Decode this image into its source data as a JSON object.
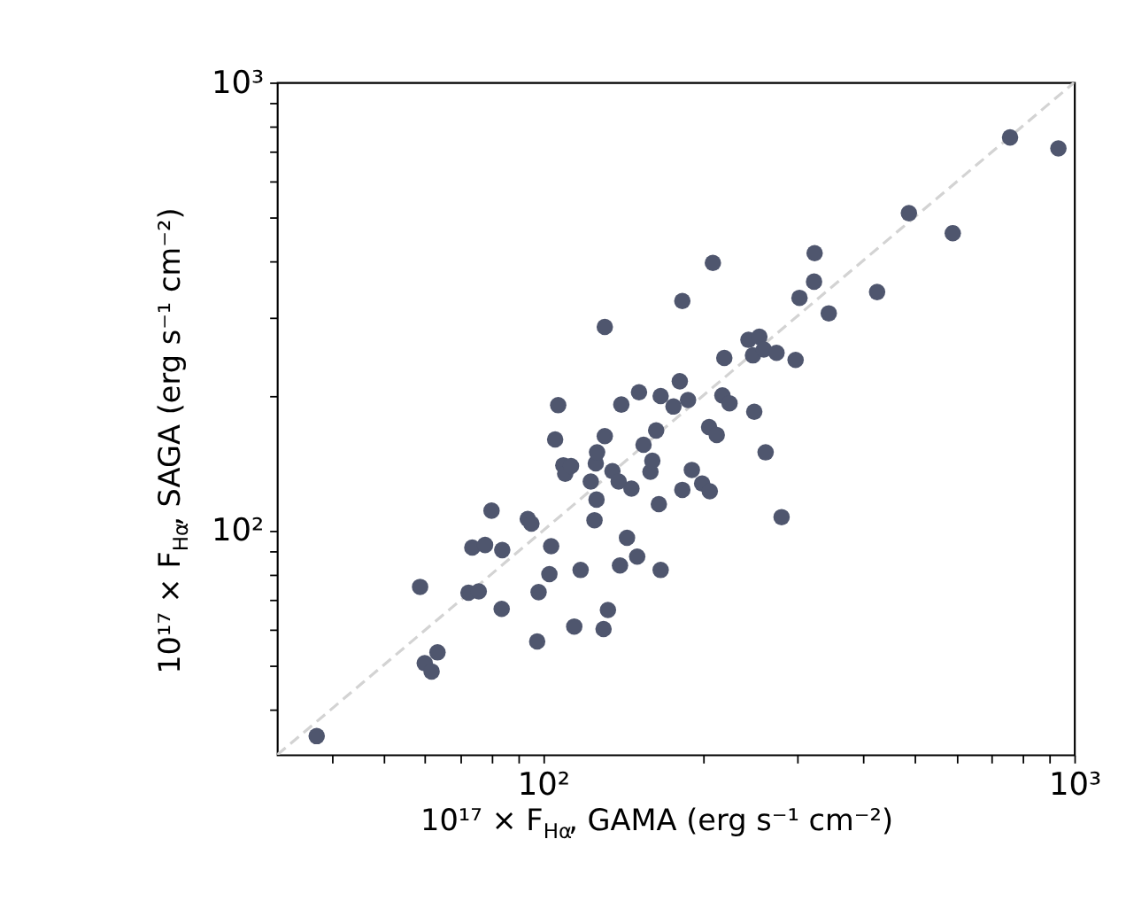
{
  "chart_data": {
    "type": "scatter",
    "xlabel": "10¹⁷ × F$_{Hα}$, GAMA (erg s⁻¹ cm⁻²)",
    "ylabel": "10¹⁷ × F$_{Hα}$, SAGA (erg s⁻¹ cm⁻²)",
    "log": "xy",
    "grid": false,
    "xlim": [
      31.6,
      1000
    ],
    "ylim": [
      31.6,
      1000
    ],
    "xticks": [
      {
        "value": 40,
        "label": null
      },
      {
        "value": 50,
        "label": null
      },
      {
        "value": 60,
        "label": null
      },
      {
        "value": 70,
        "label": null
      },
      {
        "value": 80,
        "label": null
      },
      {
        "value": 90,
        "label": null
      },
      {
        "value": 100,
        "label": "10²"
      },
      {
        "value": 200,
        "label": null
      },
      {
        "value": 300,
        "label": null
      },
      {
        "value": 400,
        "label": null
      },
      {
        "value": 500,
        "label": null
      },
      {
        "value": 600,
        "label": null
      },
      {
        "value": 700,
        "label": null
      },
      {
        "value": 800,
        "label": null
      },
      {
        "value": 900,
        "label": null
      },
      {
        "value": 1000,
        "label": "10³"
      }
    ],
    "yticks": [
      {
        "value": 40,
        "label": null
      },
      {
        "value": 50,
        "label": null
      },
      {
        "value": 60,
        "label": null
      },
      {
        "value": 70,
        "label": null
      },
      {
        "value": 80,
        "label": null
      },
      {
        "value": 90,
        "label": null
      },
      {
        "value": 100,
        "label": "10²"
      },
      {
        "value": 200,
        "label": null
      },
      {
        "value": 300,
        "label": null
      },
      {
        "value": 400,
        "label": null
      },
      {
        "value": 500,
        "label": null
      },
      {
        "value": 600,
        "label": null
      },
      {
        "value": 700,
        "label": null
      },
      {
        "value": 800,
        "label": null
      },
      {
        "value": 900,
        "label": null
      },
      {
        "value": 1000,
        "label": "10³"
      }
    ],
    "series": [
      {
        "type": "line",
        "color": "#d3d3d3",
        "line_style": "dashed",
        "x": [
          31.6,
          1000
        ],
        "values": [
          31.6,
          1000
        ]
      },
      {
        "marker": "circle",
        "color": "#4f566e",
        "x": [
          37.5,
          58.7,
          59.9,
          61.7,
          63.3,
          72.4,
          75.7,
          73.6,
          77.8,
          80.0,
          83.6,
          83.8,
          93.6,
          95.1,
          97.5,
          98.1,
          102.8,
          103.6,
          105.4,
          106.8,
          109.2,
          110.1,
          112.9,
          114.5,
          117.7,
          123.0,
          125.0,
          126.1,
          125.7,
          126.4,
          130.0,
          130.7,
          130.7,
          132.5,
          135.1,
          138.8,
          139.6,
          140.4,
          143.9,
          146.7,
          150.4,
          151.6,
          154.6,
          159.3,
          160.6,
          163.3,
          165.2,
          166.5,
          166.5,
          176.0,
          180.9,
          182.9,
          182.9,
          187.5,
          190.6,
          199.3,
          205.4,
          206.0,
          208.8,
          212.3,
          217.6,
          219.4,
          224.4,
          243.6,
          248.4,
          249.8,
          255.4,
          260.4,
          262.4,
          275.1,
          281.2,
          298.8,
          303.9,
          323.7,
          324.5,
          345.0,
          425.4,
          488.3,
          590.5,
          756.9,
          933.3
        ],
        "values": [
          34.8,
          74.9,
          50.6,
          48.5,
          53.5,
          72.7,
          73.2,
          91.7,
          92.9,
          110.8,
          66.9,
          90.5,
          106.2,
          103.7,
          56.6,
          72.9,
          80.0,
          92.3,
          159.8,
          190.5,
          139.9,
          133.9,
          139.4,
          61.1,
          81.7,
          128.7,
          105.5,
          117.3,
          141.3,
          149.5,
          60.3,
          162.5,
          284.8,
          66.5,
          135.8,
          128.7,
          83.6,
          191.1,
          96.4,
          124.1,
          87.5,
          203.6,
          155.5,
          135.3,
          143.2,
          167.3,
          114.6,
          199.7,
          81.7,
          189.2,
          215.4,
          325.3,
          123.3,
          195.6,
          136.6,
          127.4,
          170.2,
          122.4,
          395.6,
          163.5,
          200.3,
          242.9,
          192.4,
          266.5,
          246.1,
          184.2,
          270.8,
          253.6,
          149.5,
          249.3,
          107.2,
          240.4,
          330.7,
          359.4,
          416.0,
          305.4,
          340.7,
          510.9,
          461.0,
          754.0,
          712.7
        ]
      }
    ]
  }
}
